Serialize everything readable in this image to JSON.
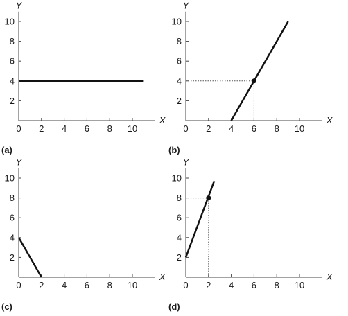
{
  "chart_data": [
    {
      "type": "line",
      "panel_label": "(a)",
      "xlabel": "X",
      "ylabel": "Y",
      "xlim": [
        0,
        12
      ],
      "ylim": [
        0,
        11
      ],
      "x_ticks": [
        "0",
        "2",
        "4",
        "6",
        "8",
        "10"
      ],
      "y_ticks": [
        "2",
        "4",
        "6",
        "8",
        "10"
      ],
      "grid": false,
      "series": [
        {
          "x": [
            0,
            11
          ],
          "y": [
            4,
            4
          ]
        }
      ]
    },
    {
      "type": "line",
      "panel_label": "(b)",
      "xlabel": "X",
      "ylabel": "Y",
      "xlim": [
        0,
        12
      ],
      "ylim": [
        0,
        11
      ],
      "x_ticks": [
        "0",
        "2",
        "4",
        "6",
        "8",
        "10"
      ],
      "y_ticks": [
        "2",
        "4",
        "6",
        "8",
        "10"
      ],
      "grid": false,
      "series": [
        {
          "x": [
            4,
            9
          ],
          "y": [
            0,
            10
          ]
        }
      ],
      "highlight_point": {
        "x": 6,
        "y": 4
      }
    },
    {
      "type": "line",
      "panel_label": "(c)",
      "xlabel": "X",
      "ylabel": "Y",
      "xlim": [
        0,
        12
      ],
      "ylim": [
        0,
        11
      ],
      "x_ticks": [
        "0",
        "2",
        "4",
        "6",
        "8",
        "10"
      ],
      "y_ticks": [
        "2",
        "4",
        "6",
        "8",
        "10"
      ],
      "grid": false,
      "series": [
        {
          "x": [
            0,
            2
          ],
          "y": [
            4,
            0
          ]
        }
      ]
    },
    {
      "type": "line",
      "panel_label": "(d)",
      "xlabel": "X",
      "ylabel": "Y",
      "xlim": [
        0,
        12
      ],
      "ylim": [
        0,
        11
      ],
      "x_ticks": [
        "0",
        "2",
        "4",
        "6",
        "8",
        "10"
      ],
      "y_ticks": [
        "2",
        "4",
        "6",
        "8",
        "10"
      ],
      "grid": false,
      "series": [
        {
          "x": [
            0,
            2.5
          ],
          "y": [
            2,
            9.7
          ]
        }
      ],
      "highlight_point": {
        "x": 2,
        "y": 8
      }
    }
  ]
}
